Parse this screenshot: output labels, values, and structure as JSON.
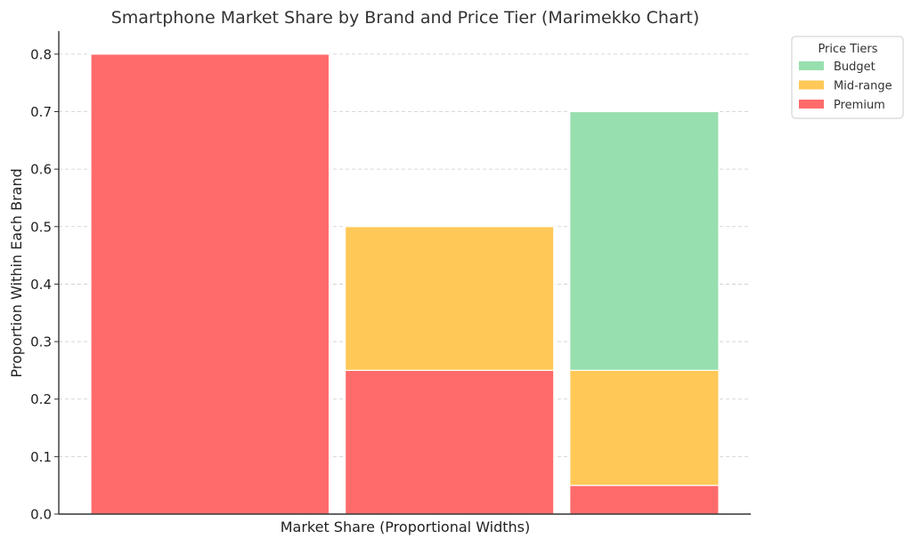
{
  "chart_data": {
    "type": "bar",
    "variant": "marimekko",
    "title": "Smartphone Market Share by Brand and Price Tier (Marimekko Chart)",
    "xlabel": "Market Share (Proportional Widths)",
    "ylabel": "Proportion Within Each Brand",
    "ylim": [
      0,
      0.84
    ],
    "yticks": [
      0.0,
      0.1,
      0.2,
      0.3,
      0.4,
      0.5,
      0.6,
      0.7,
      0.8
    ],
    "grid": "horizontal-dashed",
    "legend": {
      "title": "Price Tiers",
      "placement": "outside-top-right"
    },
    "column_widths": [
      0.4,
      0.35,
      0.25
    ],
    "series": [
      {
        "name": "Premium",
        "color": "#ff6b6b",
        "values": [
          0.8,
          0.25,
          0.05
        ]
      },
      {
        "name": "Mid-range",
        "color": "#ffc857",
        "values": [
          0.0,
          0.25,
          0.2
        ]
      },
      {
        "name": "Budget",
        "color": "#98dfaf",
        "values": [
          0.0,
          0.0,
          0.45
        ]
      }
    ],
    "legend_order": [
      "Budget",
      "Mid-range",
      "Premium"
    ]
  }
}
